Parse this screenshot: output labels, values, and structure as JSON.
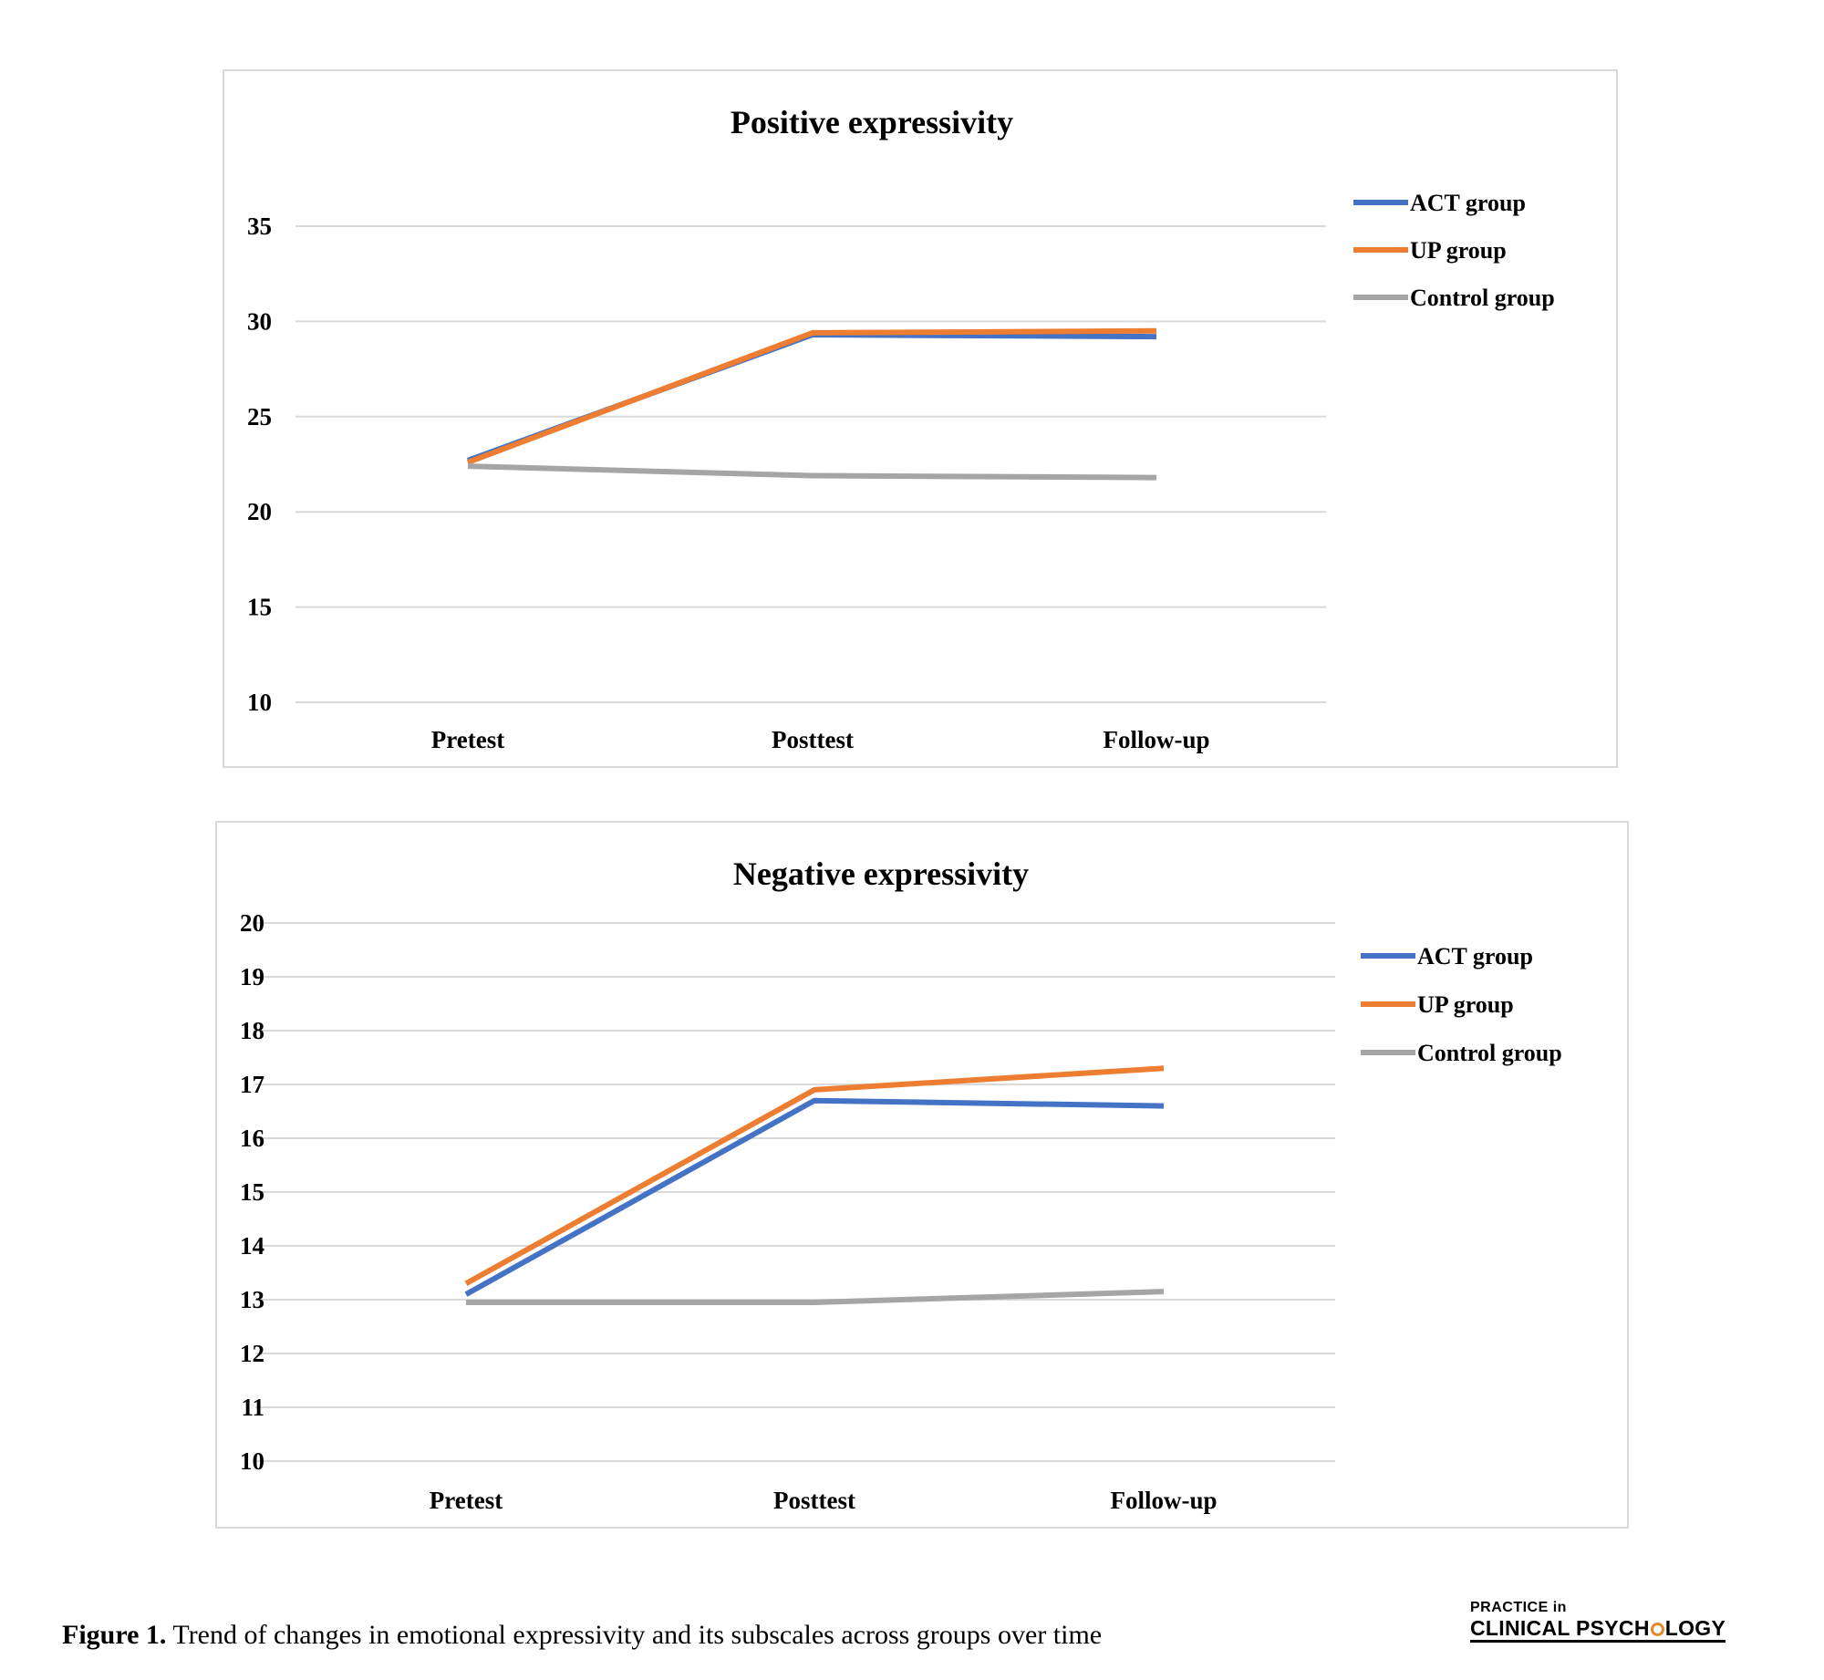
{
  "chart_data": [
    {
      "type": "line",
      "title": "Positive expressivity",
      "categories": [
        "Pretest",
        "Posttest",
        "Follow-up"
      ],
      "ylim": [
        10,
        35
      ],
      "yticks": [
        10,
        15,
        20,
        25,
        30,
        35
      ],
      "grid": true,
      "legend_position": "top-right",
      "series": [
        {
          "name": "ACT group",
          "color": "#4472c4",
          "values": [
            22.7,
            29.3,
            29.2
          ]
        },
        {
          "name": "UP group",
          "color": "#ed7d31",
          "values": [
            22.6,
            29.4,
            29.5
          ]
        },
        {
          "name": "Control group",
          "color": "#a5a5a5",
          "values": [
            22.4,
            21.9,
            21.8
          ]
        }
      ]
    },
    {
      "type": "line",
      "title": "Negative expressivity",
      "categories": [
        "Pretest",
        "Posttest",
        "Follow-up"
      ],
      "ylim": [
        10,
        20
      ],
      "yticks": [
        10,
        11,
        12,
        13,
        14,
        15,
        16,
        17,
        18,
        19,
        20
      ],
      "grid": true,
      "legend_position": "top-right",
      "series": [
        {
          "name": "ACT group",
          "color": "#4472c4",
          "values": [
            13.1,
            16.7,
            16.6
          ]
        },
        {
          "name": "UP group",
          "color": "#ed7d31",
          "values": [
            13.3,
            16.9,
            17.3
          ]
        },
        {
          "name": "Control group",
          "color": "#a5a5a5",
          "values": [
            12.95,
            12.95,
            13.15
          ]
        }
      ]
    }
  ],
  "caption": {
    "label": "Figure 1.",
    "text": " Trend of changes in emotional expressivity and its subscales across groups over time"
  },
  "logo": {
    "line1": "PRACTICE in",
    "line2_before": "CLINICAL PSYCH",
    "line2_after": "LOGY"
  }
}
